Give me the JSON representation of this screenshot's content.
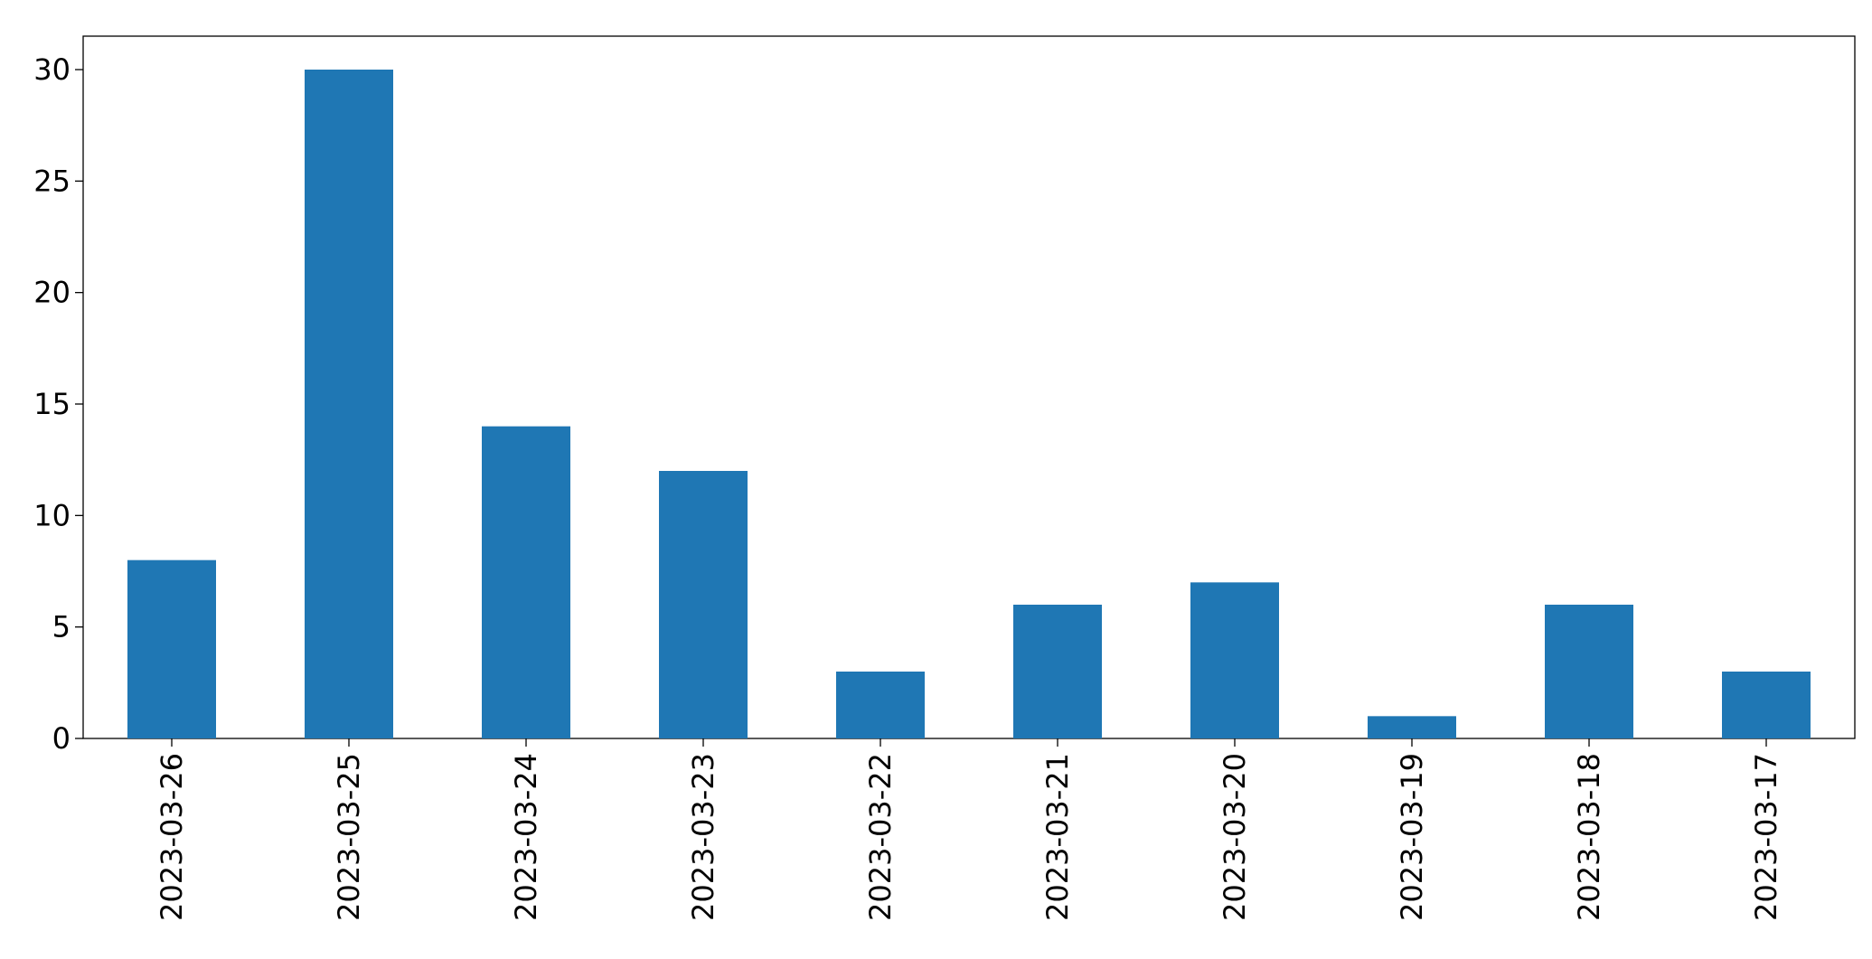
{
  "chart_data": {
    "type": "bar",
    "categories": [
      "2023-03-26",
      "2023-03-25",
      "2023-03-24",
      "2023-03-23",
      "2023-03-22",
      "2023-03-21",
      "2023-03-20",
      "2023-03-19",
      "2023-03-18",
      "2023-03-17"
    ],
    "values": [
      8,
      30,
      14,
      12,
      3,
      6,
      7,
      1,
      6,
      3
    ],
    "color": "#1f77b4",
    "ylim": [
      0,
      31.5
    ],
    "yticks": [
      0,
      5,
      10,
      15,
      20,
      25,
      30
    ],
    "grid": false
  }
}
